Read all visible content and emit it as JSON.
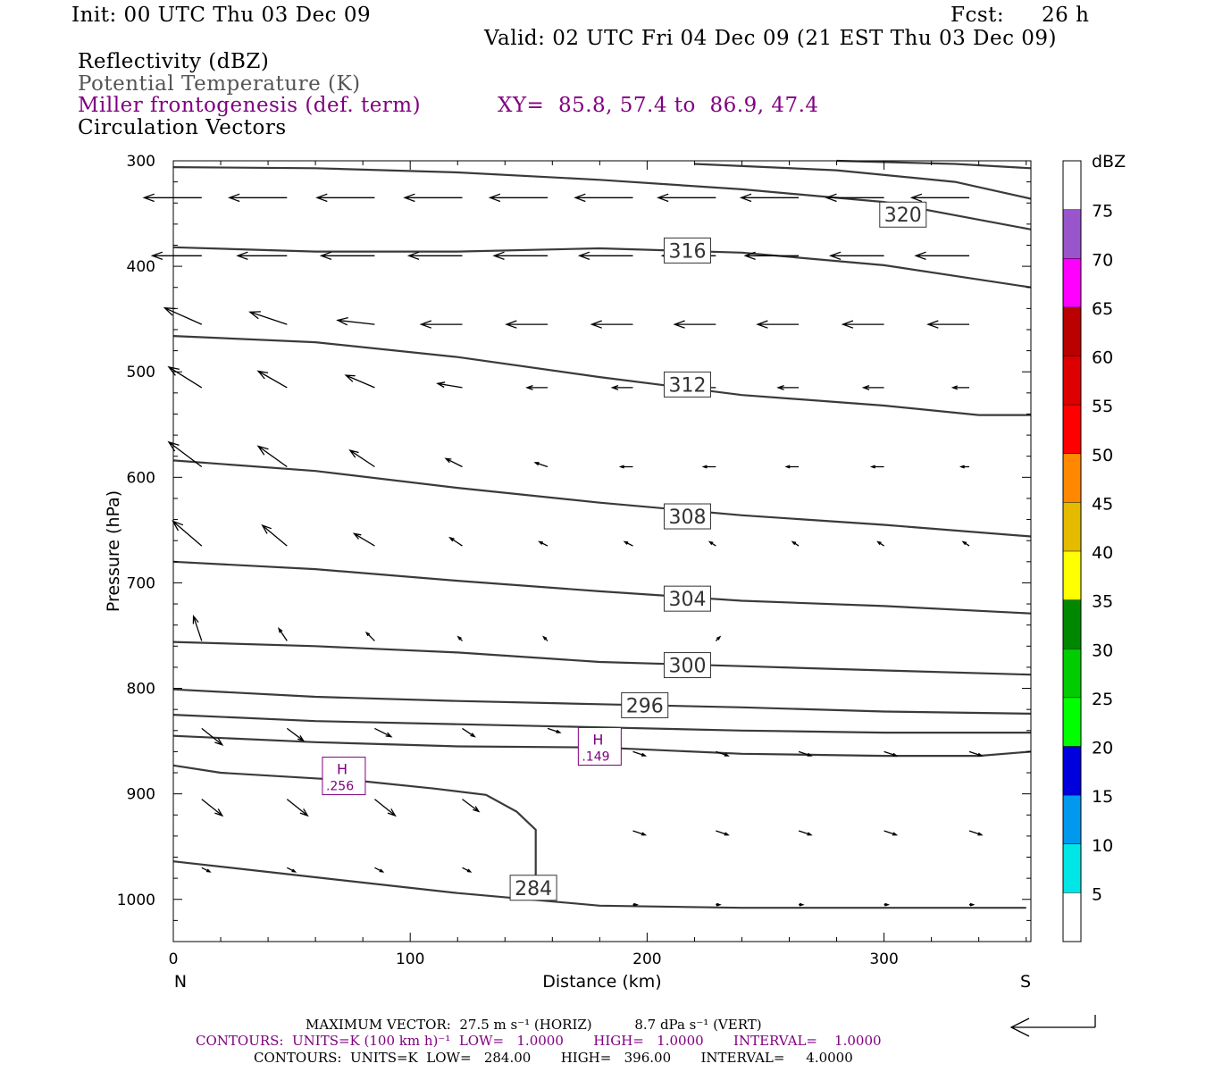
{
  "header": {
    "init": "Init: 00 UTC Thu 03 Dec 09",
    "fcst_label": "Fcst:",
    "fcst_value": "26 h",
    "valid": "Valid: 02 UTC Fri 04 Dec 09 (21 EST Thu 03 Dec 09)"
  },
  "legend_fields": {
    "reflectivity": "Reflectivity (dBZ)",
    "theta": "Potential Temperature (K)",
    "miller": "Miller frontogenesis (def. term)",
    "xy": "XY=  85.8, 57.4 to  86.9, 47.4",
    "vectors": "Circulation Vectors"
  },
  "footer": {
    "max_vector": "MAXIMUM VECTOR:  27.5 m s⁻¹ (HORIZ)          8.7 dPa s⁻¹ (VERT)",
    "contours_fronto": "CONTOURS:  UNITS=K (100 km h)⁻¹  LOW=   1.0000       HIGH=   1.0000       INTERVAL=    1.0000",
    "contours_theta": "CONTOURS:  UNITS=K  LOW=   284.00       HIGH=   396.00       INTERVAL=     4.0000"
  },
  "colorbar": {
    "title": "dBZ",
    "levels": [
      5,
      10,
      15,
      20,
      25,
      30,
      35,
      40,
      45,
      50,
      55,
      60,
      65,
      70,
      75
    ],
    "colors": [
      "#ffffff",
      "#00e5e5",
      "#0099ee",
      "#0000dd",
      "#00ff00",
      "#00cc00",
      "#008800",
      "#ffff00",
      "#e5bb00",
      "#ff8800",
      "#ff0000",
      "#dd0000",
      "#bb0000",
      "#ff00ff",
      "#9955cc",
      "#ffffff"
    ]
  },
  "chart_data": {
    "type": "line",
    "xlabel": "Distance (km)",
    "ylabel": "Pressure (hPa)",
    "xlim": [
      0,
      362
    ],
    "ylim": [
      1040,
      300
    ],
    "y_scale": "linear (pressure, inverted)",
    "x_ticks": [
      0,
      100,
      200,
      300
    ],
    "y_ticks": [
      300,
      400,
      500,
      600,
      700,
      800,
      900,
      1000
    ],
    "x_end_labels": {
      "left": "N",
      "right": "S"
    },
    "theta_contours": [
      {
        "value": 320,
        "label": "320",
        "label_at": [
          308,
          351
        ],
        "points": [
          [
            0,
            306
          ],
          [
            60,
            307
          ],
          [
            120,
            311
          ],
          [
            180,
            318
          ],
          [
            240,
            327
          ],
          [
            300,
            339
          ],
          [
            362,
            365
          ]
        ]
      },
      {
        "value": null,
        "points": [
          [
            220,
            303
          ],
          [
            280,
            309
          ],
          [
            330,
            320
          ],
          [
            362,
            336
          ]
        ]
      },
      {
        "value": null,
        "points": [
          [
            280,
            300
          ],
          [
            330,
            303
          ],
          [
            362,
            307
          ]
        ]
      },
      {
        "value": 316,
        "label": "316",
        "label_at": [
          217,
          385
        ],
        "points": [
          [
            0,
            382
          ],
          [
            60,
            386
          ],
          [
            120,
            386
          ],
          [
            180,
            383
          ],
          [
            240,
            387
          ],
          [
            300,
            399
          ],
          [
            362,
            420
          ]
        ]
      },
      {
        "value": 312,
        "label": "312",
        "label_at": [
          217,
          512
        ],
        "points": [
          [
            0,
            466
          ],
          [
            60,
            472
          ],
          [
            120,
            486
          ],
          [
            180,
            505
          ],
          [
            240,
            522
          ],
          [
            300,
            532
          ],
          [
            340,
            541
          ],
          [
            362,
            541
          ]
        ]
      },
      {
        "value": 308,
        "label": "308",
        "label_at": [
          217,
          637
        ],
        "points": [
          [
            0,
            584
          ],
          [
            60,
            594
          ],
          [
            120,
            610
          ],
          [
            180,
            624
          ],
          [
            240,
            636
          ],
          [
            300,
            645
          ],
          [
            362,
            656
          ]
        ]
      },
      {
        "value": 304,
        "label": "304",
        "label_at": [
          217,
          715
        ],
        "points": [
          [
            0,
            680
          ],
          [
            60,
            687
          ],
          [
            120,
            698
          ],
          [
            180,
            708
          ],
          [
            240,
            717
          ],
          [
            300,
            722
          ],
          [
            362,
            729
          ]
        ]
      },
      {
        "value": 300,
        "label": "300",
        "label_at": [
          217,
          778
        ],
        "points": [
          [
            0,
            756
          ],
          [
            60,
            760
          ],
          [
            120,
            766
          ],
          [
            180,
            775
          ],
          [
            240,
            779
          ],
          [
            300,
            783
          ],
          [
            362,
            787
          ]
        ]
      },
      {
        "value": 296,
        "label": "296",
        "label_at": [
          199,
          816
        ],
        "points": [
          [
            0,
            801
          ],
          [
            60,
            808
          ],
          [
            120,
            812
          ],
          [
            180,
            815
          ],
          [
            240,
            818
          ],
          [
            300,
            822
          ],
          [
            362,
            824
          ]
        ]
      },
      {
        "value": null,
        "points": [
          [
            0,
            825
          ],
          [
            60,
            831
          ],
          [
            120,
            834
          ],
          [
            180,
            837
          ],
          [
            240,
            840
          ],
          [
            300,
            842
          ],
          [
            362,
            842
          ]
        ]
      },
      {
        "value": null,
        "points": [
          [
            0,
            845
          ],
          [
            60,
            851
          ],
          [
            120,
            855
          ],
          [
            180,
            856
          ],
          [
            240,
            862
          ],
          [
            300,
            864
          ],
          [
            340,
            864
          ],
          [
            362,
            860
          ]
        ]
      },
      {
        "value": 284,
        "label": "284",
        "label_at": [
          152,
          989
        ],
        "points": [
          [
            0,
            873
          ],
          [
            20,
            880
          ],
          [
            80,
            888
          ],
          [
            110,
            895
          ],
          [
            132,
            901
          ],
          [
            145,
            917
          ],
          [
            153,
            934
          ],
          [
            153,
            980
          ]
        ]
      },
      {
        "value": null,
        "points": [
          [
            0,
            964
          ],
          [
            60,
            979
          ],
          [
            120,
            994
          ],
          [
            180,
            1006
          ],
          [
            240,
            1008
          ],
          [
            300,
            1008
          ],
          [
            360,
            1008
          ]
        ]
      }
    ],
    "frontogenesis_maxima": [
      {
        "symbol": "H",
        "value": ".256",
        "x": 72,
        "p": 883
      },
      {
        "symbol": "H",
        "value": ".149",
        "x": 180,
        "p": 855
      }
    ],
    "circulation_vectors": {
      "x_columns": [
        12,
        48,
        85,
        122,
        158,
        194,
        229,
        264,
        300,
        336
      ],
      "rows": [
        {
          "p": 335,
          "u": [
            -14,
            -14,
            -14,
            -14,
            -14,
            -14,
            -14,
            -14,
            -14,
            -14
          ],
          "v": [
            0,
            0,
            0,
            0,
            0,
            0,
            0,
            0,
            0,
            0
          ]
        },
        {
          "p": 390,
          "u": [
            -12,
            -12,
            -13,
            -13,
            -13,
            -13,
            -13,
            -13,
            -13,
            -13
          ],
          "v": [
            0,
            0,
            0,
            0,
            0,
            0,
            0,
            0,
            0,
            0
          ]
        },
        {
          "p": 455,
          "u": [
            -9,
            -9,
            -9,
            -10,
            -10,
            -10,
            -10,
            -10,
            -10,
            -10
          ],
          "v": [
            -4,
            -3,
            -1,
            0,
            0,
            0,
            0,
            0,
            0,
            0
          ]
        },
        {
          "p": 515,
          "u": [
            -8,
            -7,
            -7,
            -6,
            -5,
            -5,
            -5,
            -5,
            -5,
            -4
          ],
          "v": [
            -5,
            -4,
            -3,
            -1,
            0,
            0,
            0,
            0,
            0,
            0
          ]
        },
        {
          "p": 590,
          "u": [
            -8,
            -7,
            -6,
            -4,
            -3,
            -3,
            -3,
            -3,
            -3,
            -2
          ],
          "v": [
            -6,
            -5,
            -4,
            -2,
            -1,
            0,
            0,
            0,
            0,
            0
          ]
        },
        {
          "p": 665,
          "u": [
            -7,
            -6,
            -5,
            -3,
            -2,
            -2,
            -1.5,
            -1.5,
            -1.5,
            -1.5
          ],
          "v": [
            -6,
            -5,
            -3,
            -2,
            -1,
            -1,
            -1,
            -1,
            -1,
            -1
          ]
        },
        {
          "p": 755,
          "u": [
            -2,
            -2,
            -2,
            -1,
            -1,
            0,
            1,
            0,
            0,
            0
          ],
          "v": [
            -6,
            -3,
            -2,
            -1,
            -1,
            0,
            -1,
            0,
            0,
            0
          ]
        },
        {
          "p": 838,
          "u": [
            5,
            4,
            4,
            3,
            3,
            0,
            0,
            0,
            0,
            0
          ],
          "v": [
            4,
            3,
            2,
            2,
            1,
            0,
            0,
            0,
            0,
            0
          ]
        },
        {
          "p": 860,
          "u": [
            0,
            0,
            0,
            0,
            0,
            3,
            3,
            3,
            3,
            3
          ],
          "v": [
            0,
            0,
            0,
            0,
            0,
            1,
            1,
            1,
            1,
            1
          ]
        },
        {
          "p": 905,
          "u": [
            5,
            5,
            5,
            4,
            0,
            0,
            0,
            0,
            0,
            0
          ],
          "v": [
            4,
            4,
            4,
            3,
            0,
            0,
            0,
            0,
            0,
            0
          ]
        },
        {
          "p": 935,
          "u": [
            0,
            0,
            0,
            0,
            0,
            3,
            3,
            3,
            3,
            3
          ],
          "v": [
            0,
            0,
            0,
            0,
            0,
            1,
            1,
            1,
            1,
            1
          ]
        },
        {
          "p": 970,
          "u": [
            2,
            2,
            2,
            2,
            0,
            0,
            0,
            0,
            0,
            0
          ],
          "v": [
            1,
            1,
            1,
            1,
            0,
            0,
            0,
            0,
            0,
            0
          ]
        },
        {
          "p": 1005,
          "u": [
            0,
            0,
            0,
            0,
            0,
            1,
            1,
            1,
            1,
            1
          ],
          "v": [
            0,
            0,
            0,
            0,
            0,
            0,
            0,
            0,
            0,
            0
          ]
        }
      ]
    }
  }
}
